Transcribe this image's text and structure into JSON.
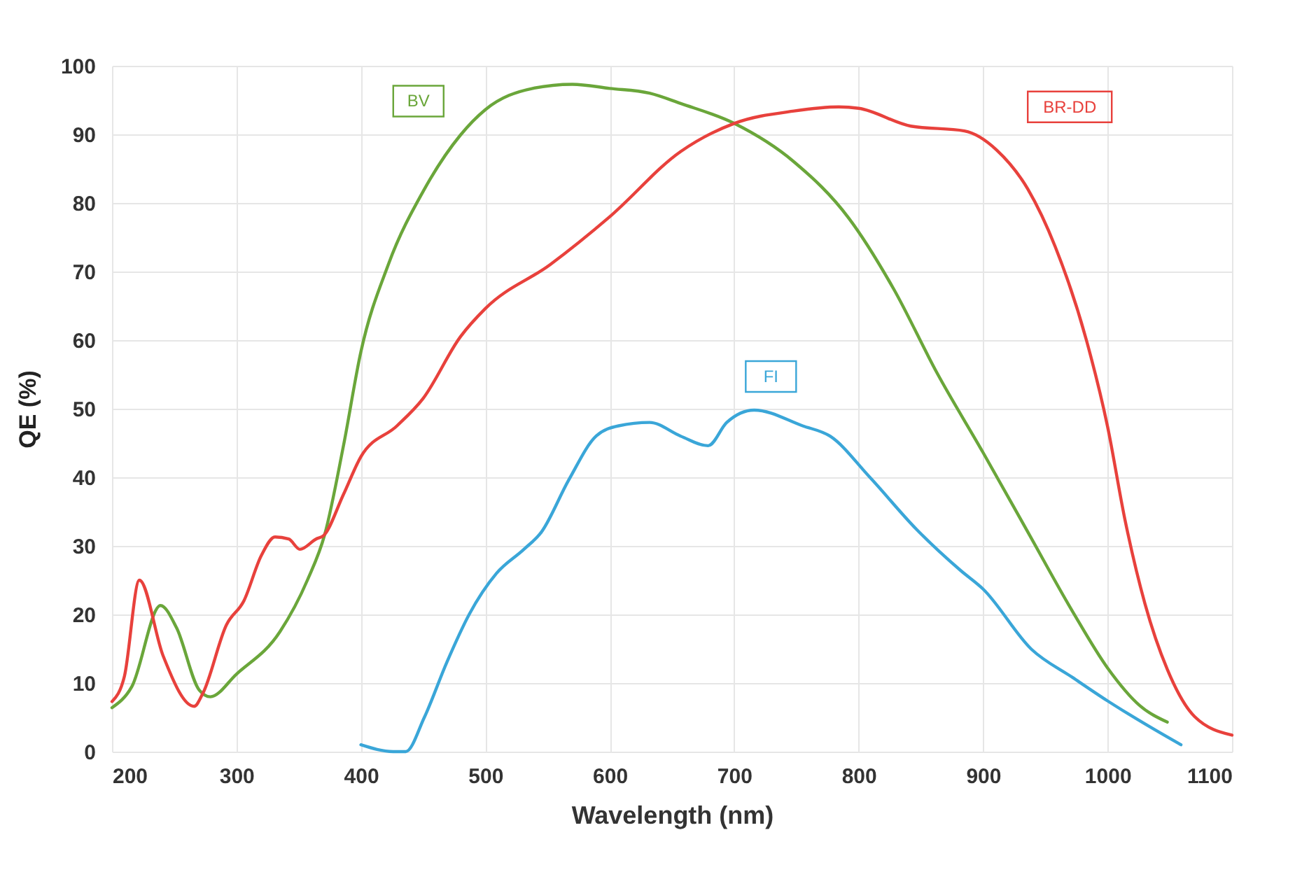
{
  "chart_data": {
    "type": "line",
    "xlabel": "Wavelength (nm)",
    "ylabel": "QE (%)",
    "xlim": [
      200,
      1100
    ],
    "xticks": [
      200,
      300,
      400,
      500,
      600,
      700,
      800,
      900,
      1000,
      1100
    ],
    "ylim": [
      0,
      100
    ],
    "yticks": [
      0,
      10,
      20,
      30,
      40,
      50,
      60,
      70,
      80,
      90,
      100
    ],
    "grid": true,
    "marker": "none",
    "line_style": "solid",
    "series": [
      {
        "name": "BV",
        "color": "#6aa63a",
        "x": [
          200,
          216,
          239,
          252,
          270,
          279,
          300,
          335,
          357,
          371,
          386,
          400,
          422,
          451,
          480,
          500,
          538,
          570,
          600,
          632,
          657,
          700,
          748,
          792,
          828,
          863,
          900,
          936,
          972,
          1000,
          1026,
          1048
        ],
        "values": [
          6.4,
          9.5,
          21.3,
          18,
          9,
          8,
          11.3,
          17.5,
          25,
          31.7,
          44.6,
          58.3,
          71,
          82,
          89.9,
          93.6,
          96.7,
          97.3,
          96.7,
          96,
          94.5,
          91.6,
          86,
          77.8,
          67.5,
          55.2,
          43.6,
          32,
          20.4,
          12.2,
          6.7,
          4.3
        ]
      },
      {
        "name": "BR-DD",
        "color": "#e8413c",
        "x": [
          200,
          210,
          222,
          241,
          266,
          273,
          292,
          306,
          320,
          331,
          342,
          351,
          364,
          370,
          386,
          400,
          429,
          450,
          480,
          500,
          552,
          600,
          657,
          700,
          748,
          784,
          800,
          842,
          885,
          911,
          936,
          958,
          983,
          1000,
          1014,
          1030,
          1048,
          1070,
          1100
        ],
        "values": [
          7.3,
          11,
          25,
          14,
          6.6,
          8.5,
          18.5,
          22,
          28.6,
          31.3,
          31,
          29.5,
          31,
          31.5,
          37.5,
          43,
          47.5,
          51.5,
          60.5,
          64.6,
          71,
          78,
          87.5,
          91.6,
          93.4,
          94,
          93.8,
          91.2,
          90.5,
          87.7,
          82,
          73.6,
          60,
          47.4,
          33.8,
          21.6,
          12,
          5.1,
          2.4
        ]
      },
      {
        "name": "FI",
        "color": "#3aa6d8",
        "x": [
          400,
          426,
          436,
          451,
          469,
          487,
          509,
          531,
          545,
          567,
          589,
          607,
          632,
          657,
          679,
          694,
          716,
          755,
          777,
          809,
          846,
          882,
          900,
          939,
          972,
          1000,
          1037,
          1059
        ],
        "values": [
          1,
          0,
          0,
          5,
          13,
          20,
          26,
          29.5,
          32,
          39.6,
          46,
          47.5,
          48,
          46,
          44.6,
          48,
          49.8,
          47.5,
          46,
          40,
          32.5,
          26.4,
          23.7,
          14.9,
          10.8,
          7.4,
          3.3,
          1
        ]
      }
    ]
  }
}
